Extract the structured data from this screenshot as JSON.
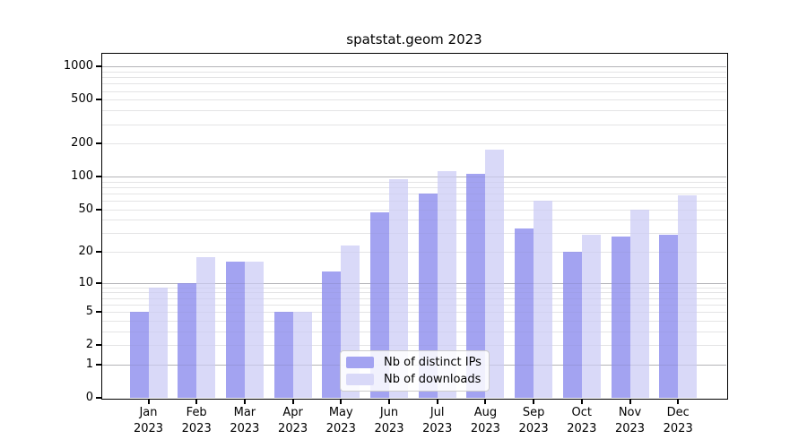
{
  "chart_data": {
    "type": "bar",
    "title": "spatstat.geom 2023",
    "xlabel": "",
    "ylabel": "",
    "yscale": "log1p",
    "categories": [
      "Jan 2023",
      "Feb 2023",
      "Mar 2023",
      "Apr 2023",
      "May 2023",
      "Jun 2023",
      "Jul 2023",
      "Aug 2023",
      "Sep 2023",
      "Oct 2023",
      "Nov 2023",
      "Dec 2023"
    ],
    "series": [
      {
        "name": "Nb of distinct IPs",
        "color": "#a3a3f1",
        "values": [
          5,
          10,
          16,
          5,
          13,
          47,
          70,
          107,
          33,
          20,
          28,
          29
        ]
      },
      {
        "name": "Nb of downloads",
        "color": "#d9d9f8",
        "values": [
          9,
          18,
          16,
          5,
          23,
          94,
          112,
          175,
          60,
          29,
          50,
          68
        ]
      }
    ],
    "y_tick_values": [
      0,
      1,
      2,
      5,
      10,
      20,
      50,
      100,
      200,
      500,
      1000
    ],
    "y_tick_labels": [
      "0",
      "1",
      "2",
      "5",
      "10",
      "20",
      "50",
      "100",
      "200",
      "500",
      "1000"
    ],
    "ylim": [
      0,
      1300
    ],
    "grid": {
      "show": true,
      "major_at": [
        1,
        10,
        100,
        1000
      ],
      "minor_per_decade": [
        2,
        3,
        4,
        5,
        6,
        7,
        8,
        9
      ]
    },
    "legend": {
      "position": "lower center",
      "entries": [
        "Nb of distinct IPs",
        "Nb of downloads"
      ]
    }
  },
  "colors": {
    "background": "#ffffff",
    "bar_distinct_ips": "#a3a3f1",
    "bar_downloads": "#d9d9f8",
    "grid_major": "#c6c6c6",
    "grid_minor": "#ececec",
    "axis": "#000000",
    "text": "#000000",
    "legend_border": "#cccccc"
  }
}
